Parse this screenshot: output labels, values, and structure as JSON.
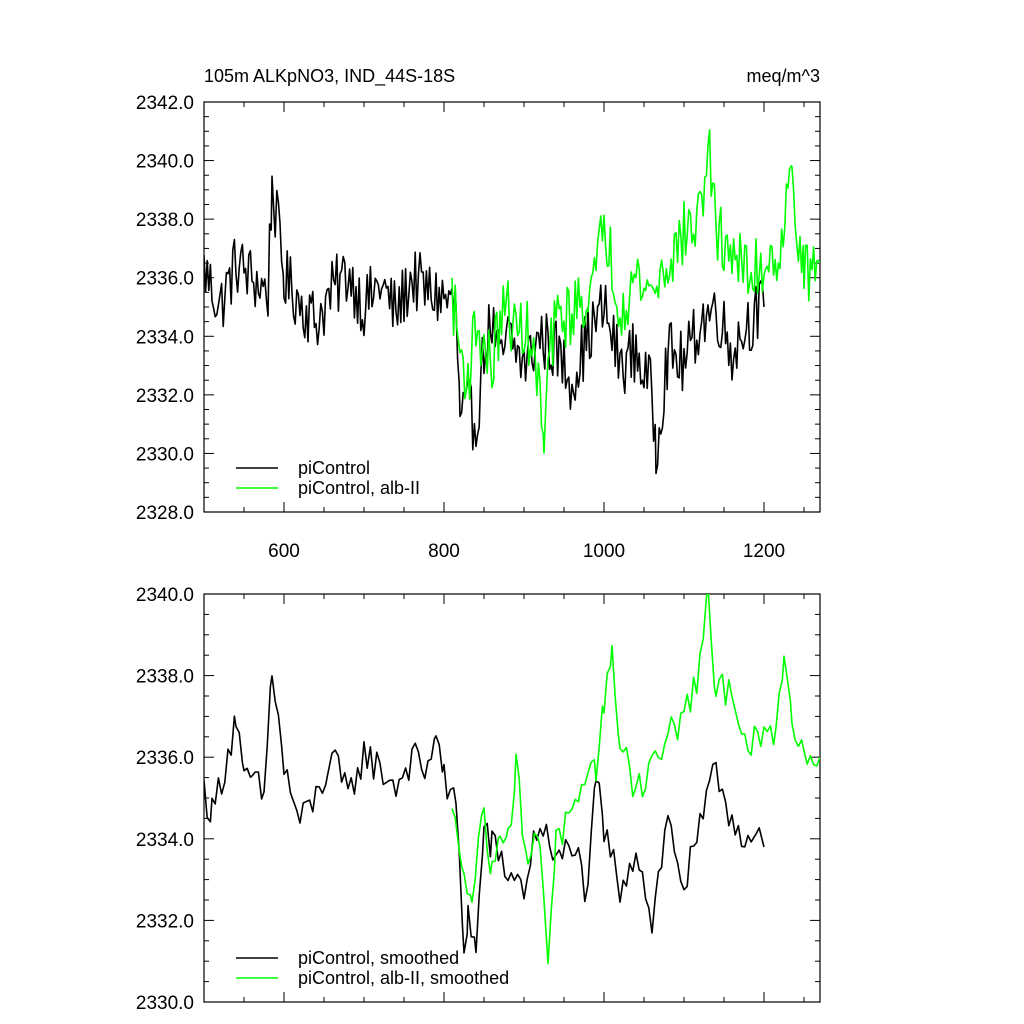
{
  "title_left": "105m ALKpNO3, IND_44S-18S",
  "title_right": "meq/m^3",
  "colors": {
    "piControl": "#000000",
    "alb_II": "#00ff00"
  },
  "chart_data": [
    {
      "type": "line",
      "panel": "raw",
      "title": "105m ALKpNO3, IND_44S-18S",
      "unit": "meq/m^3",
      "xlim": [
        500,
        1270
      ],
      "ylim": [
        2328.0,
        2342.0
      ],
      "xticks": [
        600,
        800,
        1000,
        1200
      ],
      "xtick_labels": [
        "600",
        "800",
        "1000",
        "1200"
      ],
      "yticks": [
        2328.0,
        2330.0,
        2332.0,
        2334.0,
        2336.0,
        2338.0,
        2340.0,
        2342.0
      ],
      "ytick_labels": [
        "2328.0",
        "2330.0",
        "2332.0",
        "2334.0",
        "2336.0",
        "2338.0",
        "2340.0",
        "2342.0"
      ],
      "legend_position": "bottom-left",
      "series": [
        {
          "name": "piControl",
          "color": "#000000",
          "x": [
            500,
            520,
            540,
            560,
            580,
            585,
            600,
            620,
            640,
            660,
            680,
            700,
            720,
            740,
            760,
            780,
            800,
            815,
            820,
            830,
            840,
            850,
            860,
            870,
            880,
            900,
            920,
            940,
            960,
            980,
            1000,
            1020,
            1040,
            1060,
            1065,
            1080,
            1100,
            1120,
            1140,
            1160,
            1180,
            1200
          ],
          "y": [
            2336.3,
            2335.0,
            2336.5,
            2336.0,
            2335.5,
            2339.2,
            2336.0,
            2335.2,
            2334.5,
            2335.5,
            2336.2,
            2335.0,
            2335.8,
            2334.8,
            2336.0,
            2335.5,
            2335.3,
            2335.0,
            2331.0,
            2331.5,
            2331.0,
            2333.5,
            2334.5,
            2333.0,
            2334.0,
            2333.0,
            2334.0,
            2333.5,
            2332.5,
            2334.0,
            2335.0,
            2333.0,
            2333.5,
            2332.0,
            2330.2,
            2333.5,
            2333.0,
            2334.5,
            2335.0,
            2333.5,
            2334.5,
            2335.0
          ]
        },
        {
          "name": "piControl, alb-II",
          "color": "#00ff00",
          "x": [
            810,
            820,
            830,
            840,
            850,
            860,
            870,
            880,
            890,
            900,
            910,
            920,
            925,
            930,
            940,
            960,
            980,
            990,
            1000,
            1010,
            1020,
            1040,
            1060,
            1080,
            1100,
            1120,
            1130,
            1140,
            1160,
            1180,
            1200,
            1220,
            1235,
            1250,
            1270
          ],
          "y": [
            2335.5,
            2333.5,
            2332.5,
            2334.5,
            2333.5,
            2333.0,
            2334.5,
            2335.0,
            2334.0,
            2334.5,
            2333.5,
            2332.0,
            2330.0,
            2333.0,
            2334.5,
            2334.8,
            2335.5,
            2336.0,
            2338.0,
            2336.5,
            2335.0,
            2336.0,
            2335.5,
            2336.5,
            2337.5,
            2338.0,
            2340.7,
            2337.5,
            2337.0,
            2336.0,
            2336.5,
            2337.0,
            2339.5,
            2336.0,
            2336.5
          ]
        }
      ]
    },
    {
      "type": "line",
      "panel": "smoothed",
      "xlim": [
        500,
        1270
      ],
      "ylim": [
        2330.0,
        2340.0
      ],
      "xticks": [
        600,
        800,
        1000,
        1200
      ],
      "yticks": [
        2330.0,
        2332.0,
        2334.0,
        2336.0,
        2338.0,
        2340.0
      ],
      "ytick_labels": [
        "2330.0",
        "2332.0",
        "2334.0",
        "2336.0",
        "2338.0",
        "2340.0"
      ],
      "legend_position": "bottom-left",
      "series": [
        {
          "name": "piControl, smoothed",
          "color": "#000000",
          "x": [
            500,
            510,
            530,
            540,
            550,
            560,
            575,
            585,
            600,
            620,
            640,
            660,
            680,
            700,
            720,
            740,
            760,
            780,
            790,
            800,
            815,
            825,
            830,
            840,
            850,
            860,
            880,
            900,
            920,
            940,
            960,
            980,
            990,
            1000,
            1020,
            1040,
            1060,
            1080,
            1100,
            1120,
            1140,
            1160,
            1180,
            1190,
            1200
          ],
          "y": [
            2335.2,
            2334.6,
            2336.1,
            2337.0,
            2335.3,
            2335.5,
            2335.0,
            2338.2,
            2335.7,
            2334.4,
            2335.0,
            2336.0,
            2335.0,
            2336.1,
            2335.7,
            2335.3,
            2336.0,
            2335.6,
            2336.8,
            2335.4,
            2334.8,
            2331.3,
            2332.2,
            2331.2,
            2334.3,
            2333.8,
            2333.2,
            2332.8,
            2334.5,
            2333.3,
            2334.0,
            2332.5,
            2335.5,
            2334.2,
            2332.8,
            2333.8,
            2332.0,
            2334.5,
            2332.8,
            2334.2,
            2335.7,
            2334.5,
            2334.0,
            2333.9,
            2333.8
          ]
        },
        {
          "name": "piControl, alb-II, smoothed",
          "color": "#00ff00",
          "x": [
            810,
            825,
            835,
            850,
            860,
            870,
            880,
            890,
            905,
            920,
            930,
            940,
            960,
            980,
            990,
            1000,
            1010,
            1020,
            1040,
            1060,
            1080,
            1100,
            1120,
            1130,
            1140,
            1160,
            1180,
            1200,
            1215,
            1225,
            1235,
            1250,
            1270
          ],
          "y": [
            2334.5,
            2333.5,
            2332.5,
            2334.8,
            2333.0,
            2334.5,
            2334.0,
            2335.7,
            2333.5,
            2334.0,
            2331.2,
            2334.0,
            2334.5,
            2335.2,
            2335.8,
            2337.5,
            2338.3,
            2336.5,
            2335.2,
            2335.8,
            2336.5,
            2337.0,
            2338.2,
            2339.8,
            2337.5,
            2337.8,
            2336.2,
            2336.5,
            2336.5,
            2338.8,
            2336.8,
            2336.2,
            2336.0
          ]
        }
      ]
    }
  ]
}
